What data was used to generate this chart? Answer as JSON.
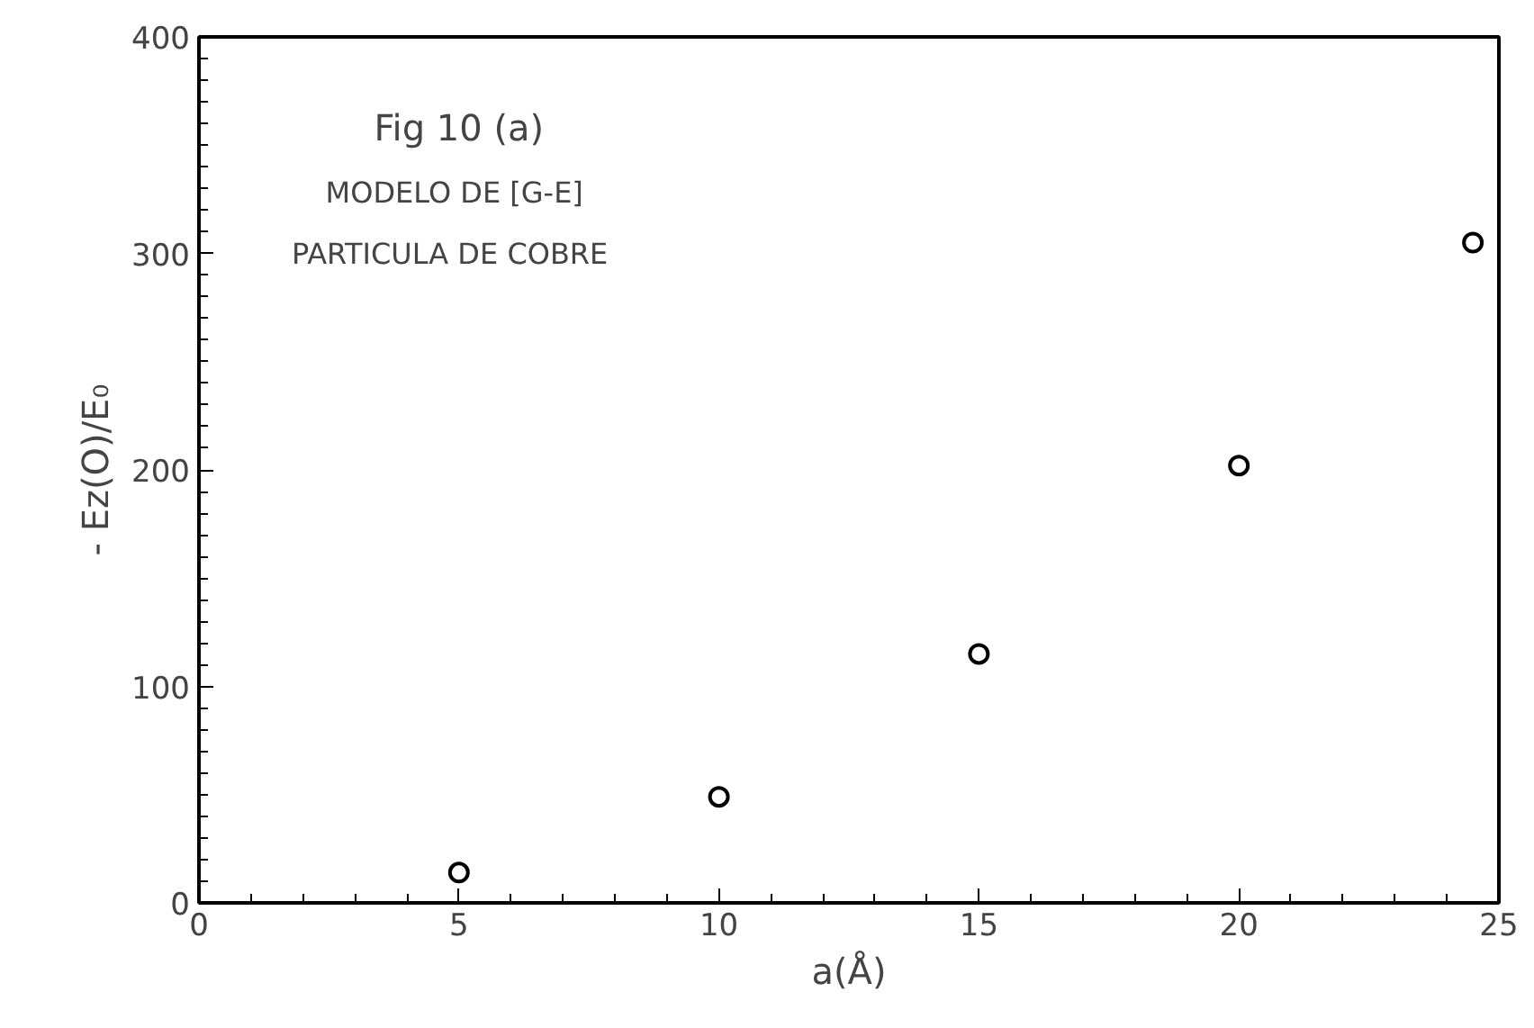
{
  "chart_data": {
    "type": "scatter",
    "xlabel": "a(Å)",
    "ylabel": "- Ez(O)/E₀",
    "annotations": [
      "Fig 10 (a)",
      "MODELO  DE [G-E]",
      "PARTICULA  DE  COBRE"
    ],
    "x": [
      5,
      10,
      15,
      20,
      24.5
    ],
    "values": [
      14,
      49,
      115,
      202,
      305
    ],
    "color": "#000000",
    "marker": "circle",
    "xlim": [
      0,
      25
    ],
    "xticks": [
      0,
      5,
      10,
      15,
      20,
      25
    ],
    "ylim": [
      0,
      400
    ],
    "yticks": [
      0,
      100,
      200,
      300,
      400
    ],
    "grid": false
  }
}
